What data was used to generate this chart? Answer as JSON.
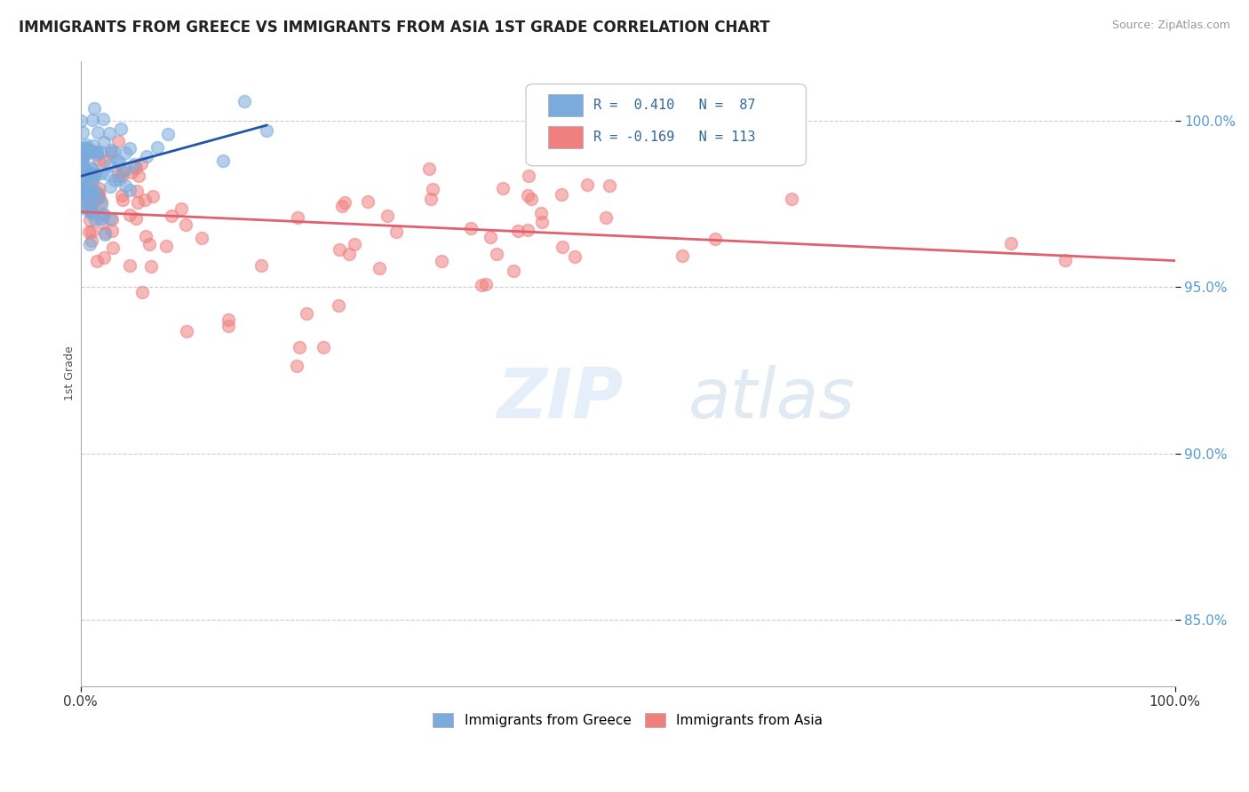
{
  "title": "IMMIGRANTS FROM GREECE VS IMMIGRANTS FROM ASIA 1ST GRADE CORRELATION CHART",
  "source": "Source: ZipAtlas.com",
  "ylabel": "1st Grade",
  "xlim": [
    0.0,
    100.0
  ],
  "ylim": [
    83.0,
    101.8
  ],
  "yticks": [
    85.0,
    90.0,
    95.0,
    100.0
  ],
  "ytick_labels": [
    "85.0%",
    "90.0%",
    "95.0%",
    "100.0%"
  ],
  "legend_labels": [
    "Immigrants from Greece",
    "Immigrants from Asia"
  ],
  "R_greece": 0.41,
  "N_greece": 87,
  "R_asia": -0.169,
  "N_asia": 113,
  "color_greece": "#7AABDC",
  "color_asia": "#F08080",
  "trendline_color_greece": "#2255AA",
  "trendline_color_asia": "#E06070",
  "background_color": "#FFFFFF",
  "grid_color": "#CCCCCC",
  "seed": 12345
}
